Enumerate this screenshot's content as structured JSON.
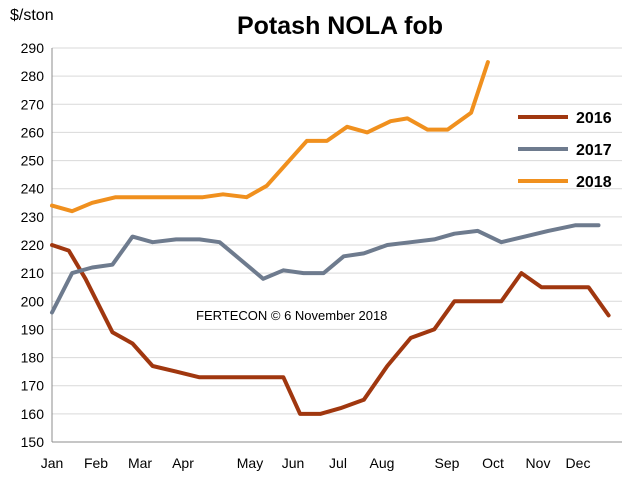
{
  "chart_data": {
    "type": "line",
    "title": "Potash NOLA fob",
    "ylabel": "$/ston",
    "ylim": [
      150,
      290
    ],
    "ytick_step": 10,
    "grid": "horizontal",
    "legend_position": "right",
    "annotation": "FERTECON ©  6 November 2018",
    "month_labels": [
      "Jan",
      "Feb",
      "Mar",
      "Apr",
      "May",
      "Jun",
      "Jul",
      "Aug",
      "Sep",
      "Oct",
      "Nov",
      "Dec"
    ],
    "series": [
      {
        "name": "2016",
        "color": "#A0370F",
        "points": [
          {
            "x": 1.0,
            "y": 220
          },
          {
            "x": 1.5,
            "y": 218
          },
          {
            "x": 2.0,
            "y": 208
          },
          {
            "x": 2.8,
            "y": 189
          },
          {
            "x": 3.4,
            "y": 185
          },
          {
            "x": 4.0,
            "y": 177
          },
          {
            "x": 4.7,
            "y": 175
          },
          {
            "x": 5.4,
            "y": 173
          },
          {
            "x": 6.6,
            "y": 173
          },
          {
            "x": 7.3,
            "y": 173
          },
          {
            "x": 7.9,
            "y": 173
          },
          {
            "x": 8.4,
            "y": 160
          },
          {
            "x": 9.0,
            "y": 160
          },
          {
            "x": 9.6,
            "y": 162
          },
          {
            "x": 10.3,
            "y": 165
          },
          {
            "x": 11.0,
            "y": 177
          },
          {
            "x": 11.7,
            "y": 187
          },
          {
            "x": 12.4,
            "y": 190
          },
          {
            "x": 13.0,
            "y": 200
          },
          {
            "x": 13.7,
            "y": 200
          },
          {
            "x": 14.4,
            "y": 200
          },
          {
            "x": 15.0,
            "y": 210
          },
          {
            "x": 15.6,
            "y": 205
          },
          {
            "x": 16.3,
            "y": 205
          },
          {
            "x": 17.0,
            "y": 205
          },
          {
            "x": 17.6,
            "y": 195
          }
        ]
      },
      {
        "name": "2017",
        "color": "#6E7B8E",
        "points": [
          {
            "x": 1.0,
            "y": 196
          },
          {
            "x": 1.6,
            "y": 210
          },
          {
            "x": 2.2,
            "y": 212
          },
          {
            "x": 2.8,
            "y": 213
          },
          {
            "x": 3.4,
            "y": 223
          },
          {
            "x": 4.0,
            "y": 221
          },
          {
            "x": 4.7,
            "y": 222
          },
          {
            "x": 5.4,
            "y": 222
          },
          {
            "x": 6.0,
            "y": 221
          },
          {
            "x": 6.6,
            "y": 215
          },
          {
            "x": 7.3,
            "y": 208
          },
          {
            "x": 7.9,
            "y": 211
          },
          {
            "x": 8.5,
            "y": 210
          },
          {
            "x": 9.1,
            "y": 210
          },
          {
            "x": 9.7,
            "y": 216
          },
          {
            "x": 10.3,
            "y": 217
          },
          {
            "x": 11.0,
            "y": 220
          },
          {
            "x": 11.7,
            "y": 221
          },
          {
            "x": 12.4,
            "y": 222
          },
          {
            "x": 13.0,
            "y": 224
          },
          {
            "x": 13.7,
            "y": 225
          },
          {
            "x": 14.4,
            "y": 221
          },
          {
            "x": 15.1,
            "y": 223
          },
          {
            "x": 15.8,
            "y": 225
          },
          {
            "x": 16.6,
            "y": 227
          },
          {
            "x": 17.3,
            "y": 227
          }
        ]
      },
      {
        "name": "2018",
        "color": "#F0901E",
        "points": [
          {
            "x": 1.0,
            "y": 234
          },
          {
            "x": 1.6,
            "y": 232
          },
          {
            "x": 2.2,
            "y": 235
          },
          {
            "x": 2.9,
            "y": 237
          },
          {
            "x": 3.5,
            "y": 237
          },
          {
            "x": 4.2,
            "y": 237
          },
          {
            "x": 4.9,
            "y": 237
          },
          {
            "x": 5.5,
            "y": 237
          },
          {
            "x": 6.1,
            "y": 238
          },
          {
            "x": 6.8,
            "y": 237
          },
          {
            "x": 7.4,
            "y": 241
          },
          {
            "x": 8.0,
            "y": 249
          },
          {
            "x": 8.6,
            "y": 257
          },
          {
            "x": 9.2,
            "y": 257
          },
          {
            "x": 9.8,
            "y": 262
          },
          {
            "x": 10.4,
            "y": 260
          },
          {
            "x": 11.1,
            "y": 264
          },
          {
            "x": 11.6,
            "y": 265
          },
          {
            "x": 12.2,
            "y": 261
          },
          {
            "x": 12.8,
            "y": 261
          },
          {
            "x": 13.5,
            "y": 267
          },
          {
            "x": 14.0,
            "y": 285
          }
        ]
      }
    ]
  }
}
